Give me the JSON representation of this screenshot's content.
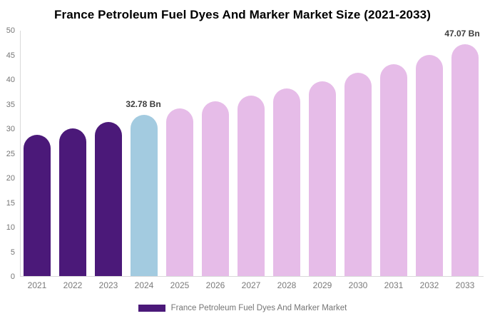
{
  "chart_data": {
    "type": "bar",
    "title": "France Petroleum Fuel Dyes And Marker Market Size (2021-2033)",
    "categories": [
      "2021",
      "2022",
      "2023",
      "2024",
      "2025",
      "2026",
      "2027",
      "2028",
      "2029",
      "2030",
      "2031",
      "2032",
      "2033"
    ],
    "values": [
      28.7,
      30.0,
      31.3,
      32.78,
      34.1,
      35.5,
      36.6,
      38.1,
      39.6,
      41.3,
      43.0,
      44.9,
      47.07
    ],
    "unit": "Bn",
    "bar_roles": [
      "historical",
      "historical",
      "historical",
      "highlight",
      "forecast",
      "forecast",
      "forecast",
      "forecast",
      "forecast",
      "forecast",
      "forecast",
      "forecast",
      "forecast"
    ],
    "colors": {
      "historical": "#4B1979",
      "highlight": "#A3CBE0",
      "forecast": "#E6BCE8"
    },
    "annotations": [
      {
        "index": 3,
        "label": "32.78 Bn"
      },
      {
        "index": 12,
        "label": "47.07 Bn"
      }
    ],
    "yticks": [
      0,
      5,
      10,
      15,
      20,
      25,
      30,
      35,
      40,
      45,
      50
    ],
    "ylim": [
      0,
      50
    ],
    "xlabel": "",
    "ylabel": "",
    "grid": false,
    "legend": {
      "position": "bottom",
      "label": "France Petroleum Fuel Dyes And Marker Market"
    }
  }
}
